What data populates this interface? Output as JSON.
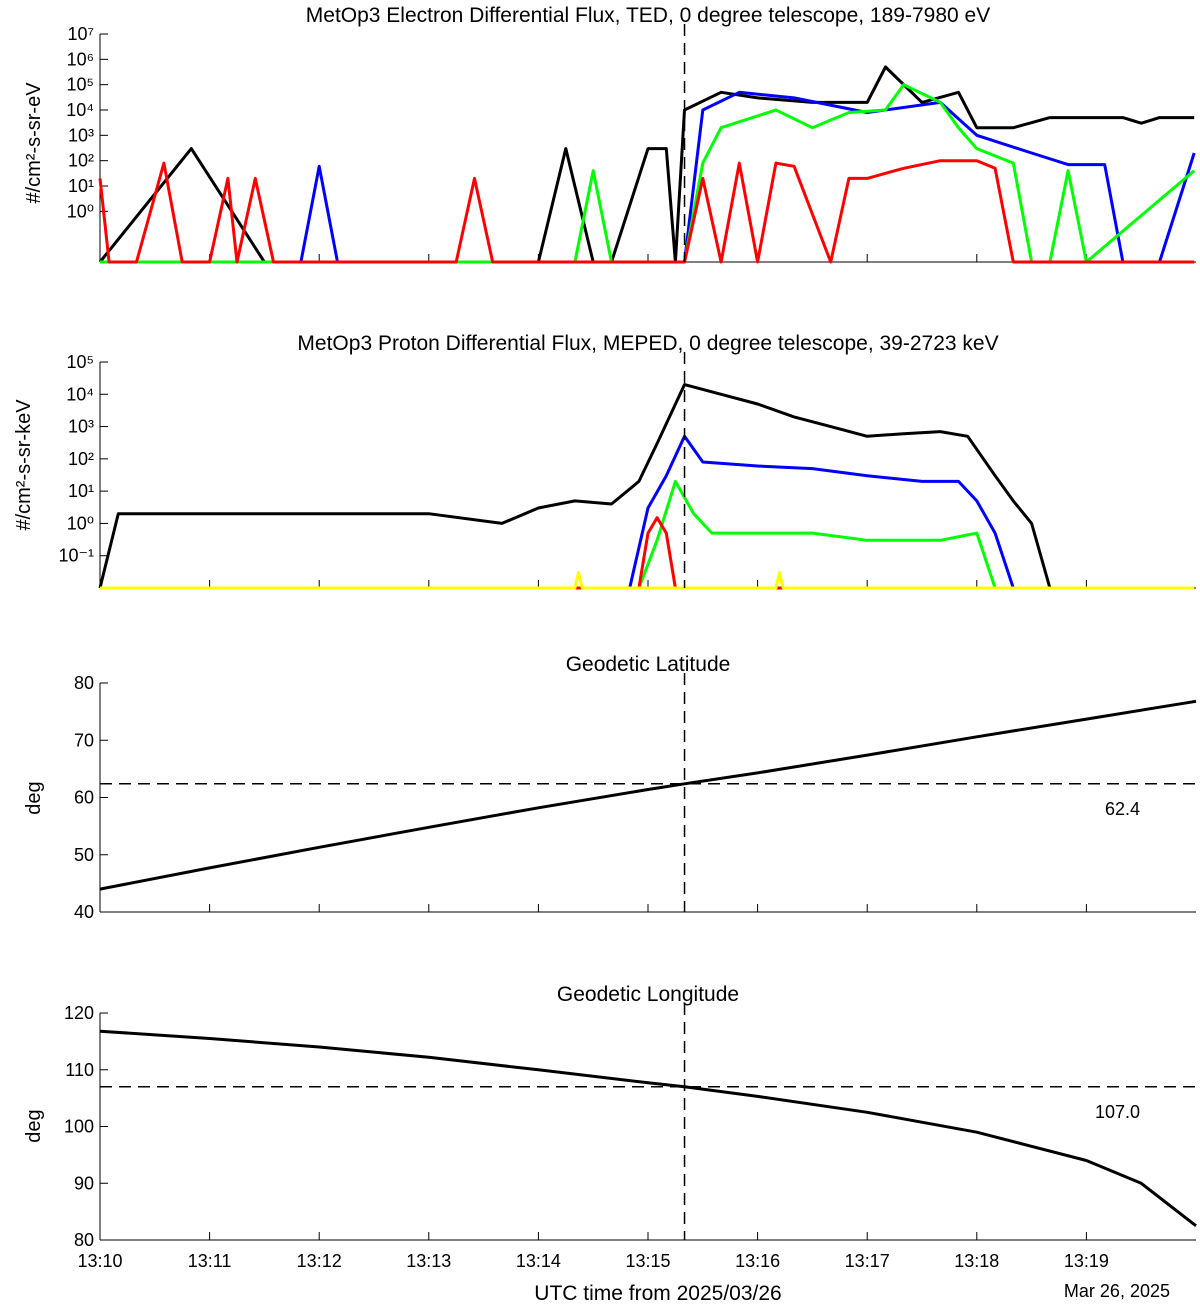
{
  "chart_data": [
    {
      "type": "line",
      "title": "MetOp3 Electron Differential Flux, TED, 0 degree telescope, 189-7980 eV",
      "ylabel": "#/cm²-s-sr-eV",
      "yscale": "log",
      "ylim": [
        0.01,
        10000000
      ],
      "yticks": [
        1,
        10,
        100,
        1000,
        10000,
        100000,
        1000000,
        10000000
      ],
      "ytick_labels": [
        "10⁰",
        "10¹",
        "10²",
        "10³",
        "10⁴",
        "10⁵",
        "10⁶",
        "10⁷"
      ],
      "xlim": [
        "13:10",
        "13:20"
      ],
      "event_time": "13:15:20",
      "series": [
        {
          "color": "#000000",
          "x": [
            "13:10:00",
            "13:10:50",
            "13:11:30",
            "13:14:00",
            "13:14:15",
            "13:14:30",
            "13:14:40",
            "13:15:00",
            "13:15:10",
            "13:15:15",
            "13:15:20",
            "13:15:40",
            "13:16:00",
            "13:16:30",
            "13:17:00",
            "13:17:10",
            "13:17:30",
            "13:17:50",
            "13:18:00",
            "13:18:20",
            "13:18:40",
            "13:19:00",
            "13:19:20",
            "13:19:30",
            "13:19:40",
            "13:19:59"
          ],
          "values": [
            0.01,
            300,
            0.01,
            0.01,
            300,
            0.01,
            0.01,
            300,
            300,
            0.01,
            10000,
            50000,
            30000,
            20000,
            20000,
            500000,
            20000,
            50000,
            2000,
            2000,
            5000,
            5000,
            5000,
            3000,
            5000,
            5000
          ]
        },
        {
          "color": "#0000ff",
          "x": [
            "13:10:00",
            "13:11:50",
            "13:12:00",
            "13:12:10",
            "13:15:00",
            "13:15:20",
            "13:15:30",
            "13:15:50",
            "13:16:20",
            "13:17:00",
            "13:17:40",
            "13:18:00",
            "13:18:30",
            "13:18:50",
            "13:19:10",
            "13:19:20",
            "13:19:40",
            "13:19:59"
          ],
          "values": [
            0.01,
            0.01,
            60,
            0.01,
            0.01,
            0.01,
            10000,
            50000,
            30000,
            8000,
            20000,
            1000,
            200,
            70,
            70,
            0.01,
            0.01,
            200
          ]
        },
        {
          "color": "#00ff00",
          "x": [
            "13:10:00",
            "13:14:20",
            "13:14:30",
            "13:14:40",
            "13:15:00",
            "13:15:20",
            "13:15:30",
            "13:15:40",
            "13:16:10",
            "13:16:30",
            "13:16:50",
            "13:17:10",
            "13:17:20",
            "13:17:40",
            "13:17:50",
            "13:18:00",
            "13:18:20",
            "13:18:30",
            "13:18:40",
            "13:18:50",
            "13:19:00",
            "13:19:59"
          ],
          "values": [
            0.01,
            0.01,
            40,
            0.01,
            0.01,
            0.01,
            80,
            2000,
            10000,
            2000,
            8000,
            10000,
            100000,
            20000,
            2000,
            300,
            80,
            0.01,
            0.01,
            40,
            0.01,
            40
          ]
        },
        {
          "color": "#ff0000",
          "x": [
            "13:10:00",
            "13:10:05",
            "13:10:20",
            "13:10:35",
            "13:10:45",
            "13:11:00",
            "13:11:10",
            "13:11:15",
            "13:11:25",
            "13:11:35",
            "13:13:15",
            "13:13:25",
            "13:13:35",
            "13:15:20",
            "13:15:30",
            "13:15:40",
            "13:15:50",
            "13:16:00",
            "13:16:10",
            "13:16:20",
            "13:16:40",
            "13:16:50",
            "13:17:00",
            "13:17:20",
            "13:17:40",
            "13:18:00",
            "13:18:10",
            "13:18:20",
            "13:18:30",
            "13:18:40",
            "13:19:59"
          ],
          "values": [
            20,
            0.01,
            0.01,
            80,
            0.01,
            0.01,
            20,
            0.01,
            20,
            0.01,
            0.01,
            20,
            0.01,
            0.01,
            20,
            0.01,
            80,
            0.01,
            80,
            60,
            0.01,
            20,
            20,
            50,
            100,
            100,
            50,
            0.01,
            0.01,
            0.01,
            0.01
          ]
        }
      ]
    },
    {
      "type": "line",
      "title": "MetOp3 Proton Differential Flux, MEPED, 0 degree telescope, 39-2723 keV",
      "ylabel": "#/cm²-s-sr-keV",
      "yscale": "log",
      "ylim": [
        0.01,
        100000
      ],
      "yticks": [
        0.1,
        1,
        10,
        100,
        1000,
        10000,
        100000
      ],
      "ytick_labels": [
        "10⁻¹",
        "10⁰",
        "10¹",
        "10²",
        "10³",
        "10⁴",
        "10⁵"
      ],
      "xlim": [
        "13:10",
        "13:20"
      ],
      "event_time": "13:15:20",
      "series": [
        {
          "color": "#000000",
          "x": [
            "13:10:00",
            "13:10:10",
            "13:13:00",
            "13:13:40",
            "13:14:00",
            "13:14:20",
            "13:14:40",
            "13:14:55",
            "13:15:05",
            "13:15:20",
            "13:15:40",
            "13:16:00",
            "13:16:20",
            "13:16:40",
            "13:17:00",
            "13:17:20",
            "13:17:40",
            "13:17:55",
            "13:18:10",
            "13:18:20",
            "13:18:30",
            "13:18:40",
            "13:19:59"
          ],
          "values": [
            0.01,
            2,
            2,
            1,
            3,
            5,
            4,
            20,
            300,
            20000,
            10000,
            5000,
            2000,
            1000,
            500,
            600,
            700,
            500,
            30,
            5,
            1,
            0.01,
            0.01
          ]
        },
        {
          "color": "#0000ff",
          "x": [
            "13:10:00",
            "13:14:50",
            "13:15:00",
            "13:15:10",
            "13:15:20",
            "13:15:30",
            "13:16:00",
            "13:16:30",
            "13:17:00",
            "13:17:30",
            "13:17:50",
            "13:18:00",
            "13:18:10",
            "13:18:20",
            "13:19:59"
          ],
          "values": [
            0.01,
            0.01,
            3,
            30,
            500,
            80,
            60,
            50,
            30,
            20,
            20,
            5,
            0.5,
            0.01,
            0.01
          ]
        },
        {
          "color": "#00ff00",
          "x": [
            "13:10:00",
            "13:14:55",
            "13:15:05",
            "13:15:15",
            "13:15:25",
            "13:15:35",
            "13:16:30",
            "13:17:00",
            "13:17:40",
            "13:18:00",
            "13:18:10",
            "13:19:59"
          ],
          "values": [
            0.01,
            0.01,
            0.3,
            20,
            2,
            0.5,
            0.5,
            0.3,
            0.3,
            0.5,
            0.01,
            0.01
          ]
        },
        {
          "color": "#ff0000",
          "x": [
            "13:10:00",
            "13:14:55",
            "13:15:00",
            "13:15:05",
            "13:15:10",
            "13:15:15",
            "13:19:59"
          ],
          "values": [
            0.01,
            0.01,
            0.5,
            1.5,
            0.5,
            0.01,
            0.01
          ]
        },
        {
          "color": "#ffff00",
          "x": [
            "13:10:00",
            "13:14:20",
            "13:14:22",
            "13:14:24",
            "13:16:10",
            "13:16:12",
            "13:16:14",
            "13:19:59"
          ],
          "values": [
            0.01,
            0.01,
            0.03,
            0.01,
            0.01,
            0.03,
            0.01,
            0.01
          ]
        }
      ]
    },
    {
      "type": "line",
      "title": "Geodetic Latitude",
      "ylabel": "deg",
      "ylim": [
        40,
        80
      ],
      "yticks": [
        40,
        50,
        60,
        70,
        80
      ],
      "xlim": [
        "13:10",
        "13:20"
      ],
      "event_time": "13:15:20",
      "reference_value": 62.4,
      "reference_label": "62.4",
      "series": [
        {
          "color": "#000000",
          "x": [
            "13:10:00",
            "13:11:00",
            "13:12:00",
            "13:13:00",
            "13:14:00",
            "13:15:00",
            "13:15:20",
            "13:16:00",
            "13:17:00",
            "13:18:00",
            "13:19:00",
            "13:20:00"
          ],
          "values": [
            44.0,
            47.7,
            51.3,
            54.8,
            58.2,
            61.4,
            62.4,
            64.3,
            67.4,
            70.6,
            73.7,
            76.8
          ]
        }
      ]
    },
    {
      "type": "line",
      "title": "Geodetic Longitude",
      "ylabel": "deg",
      "ylim": [
        80,
        120
      ],
      "yticks": [
        80,
        90,
        100,
        110,
        120
      ],
      "xlim": [
        "13:10",
        "13:20"
      ],
      "event_time": "13:15:20",
      "reference_value": 107.0,
      "reference_label": "107.0",
      "series": [
        {
          "color": "#000000",
          "x": [
            "13:10:00",
            "13:11:00",
            "13:12:00",
            "13:13:00",
            "13:14:00",
            "13:15:00",
            "13:15:20",
            "13:16:00",
            "13:17:00",
            "13:18:00",
            "13:19:00",
            "13:19:30",
            "13:20:00"
          ],
          "values": [
            116.8,
            115.5,
            114.0,
            112.2,
            110.0,
            107.7,
            107.0,
            105.3,
            102.5,
            99.0,
            94.0,
            90.0,
            82.5
          ]
        }
      ]
    }
  ],
  "xaxis": {
    "tick_labels": [
      "13:10",
      "13:11",
      "13:12",
      "13:13",
      "13:14",
      "13:15",
      "13:16",
      "13:17",
      "13:18",
      "13:19"
    ],
    "xlabel": "UTC time from 2025/03/26",
    "date_label": "Mar 26, 2025"
  }
}
